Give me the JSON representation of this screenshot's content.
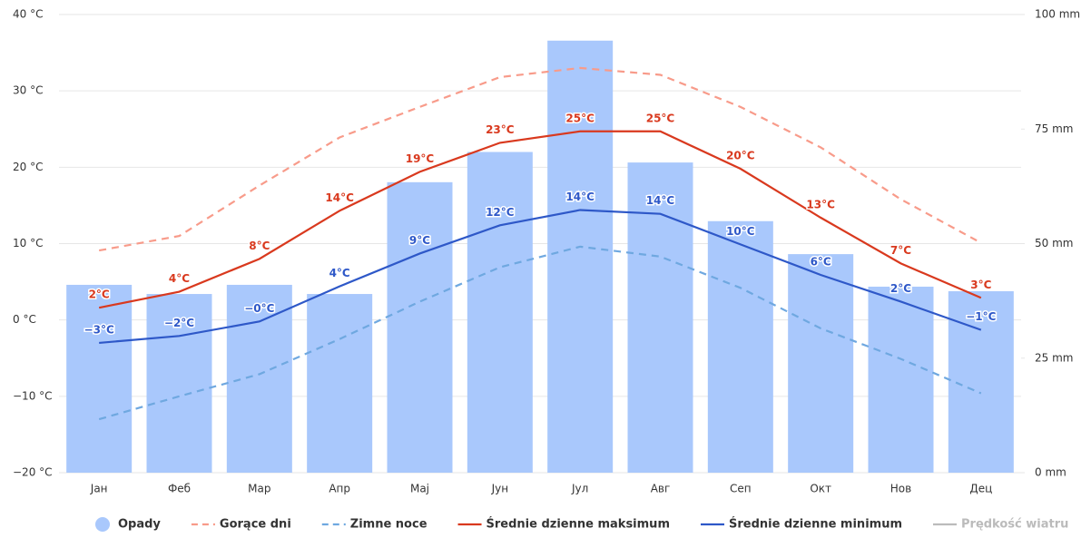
{
  "chart_data": {
    "type": "combo",
    "categories": [
      "Јан",
      "Феб",
      "Мар",
      "Апр",
      "Мај",
      "Јун",
      "Јул",
      "Авг",
      "Сеп",
      "Окт",
      "Нов",
      "Дец"
    ],
    "ylim": [
      -20,
      40
    ],
    "yticks": [
      {
        "value": -20,
        "label": "−20 °C"
      },
      {
        "value": -10,
        "label": "−10 °C"
      },
      {
        "value": 0,
        "label": "0 °C"
      },
      {
        "value": 10,
        "label": "10 °C"
      },
      {
        "value": 20,
        "label": "20 °C"
      },
      {
        "value": 30,
        "label": "30 °C"
      },
      {
        "value": 40,
        "label": "40 °C"
      }
    ],
    "y2lim": [
      0,
      100
    ],
    "y2ticks": [
      {
        "value": 0,
        "label": "0 mm"
      },
      {
        "value": 25,
        "label": "25 mm"
      },
      {
        "value": 50,
        "label": "50 mm"
      },
      {
        "value": 75,
        "label": "75 mm"
      },
      {
        "value": 100,
        "label": "100 mm"
      }
    ],
    "grid": true,
    "series": [
      {
        "name": "Opady",
        "type": "bar",
        "axis": "y2",
        "color": "#a9c8fc",
        "values": [
          41,
          39,
          41,
          39,
          63.4,
          70,
          94.3,
          67.7,
          54.9,
          47.7,
          40.6,
          39.6
        ]
      },
      {
        "name": "Gorące dni",
        "type": "line",
        "dashed": true,
        "color": "#f89b8a",
        "values": [
          9.1,
          11,
          17.6,
          23.9,
          27.9,
          31.8,
          33,
          32.1,
          27.9,
          22.6,
          15.8,
          10.1
        ]
      },
      {
        "name": "Zimne noce",
        "type": "line",
        "dashed": true,
        "color": "#6fa8e0",
        "values": [
          -13,
          -10,
          -7.1,
          -2.5,
          2.4,
          6.9,
          9.6,
          8.3,
          4.2,
          -1.1,
          -5.1,
          -9.6
        ]
      },
      {
        "name": "Średnie dzienne maksimum",
        "type": "line",
        "dashed": false,
        "color": "#d9391e",
        "values": [
          1.6,
          3.7,
          8,
          14.3,
          19.4,
          23.2,
          24.7,
          24.7,
          19.8,
          13.4,
          7.4,
          2.9
        ],
        "value_labels": [
          "2°C",
          "4°C",
          "8°C",
          "14°C",
          "19°C",
          "23°C",
          "25°C",
          "25°C",
          "20°C",
          "13°C",
          "7°C",
          "3°C"
        ]
      },
      {
        "name": "Średnie dzienne minimum",
        "type": "line",
        "dashed": false,
        "color": "#2e58c8",
        "values": [
          -3,
          -2.1,
          -0.2,
          4.4,
          8.7,
          12.4,
          14.4,
          13.9,
          9.9,
          5.9,
          2.4,
          -1.3
        ],
        "value_labels": [
          "−3°C",
          "−2°C",
          "−0°C",
          "4°C",
          "9°C",
          "12°C",
          "14°C",
          "14°C",
          "10°C",
          "6°C",
          "2°C",
          "−1°C"
        ]
      }
    ],
    "hidden_series": [
      {
        "name": "Prędkość wiatru",
        "color": "#bbbbbb"
      }
    ]
  }
}
